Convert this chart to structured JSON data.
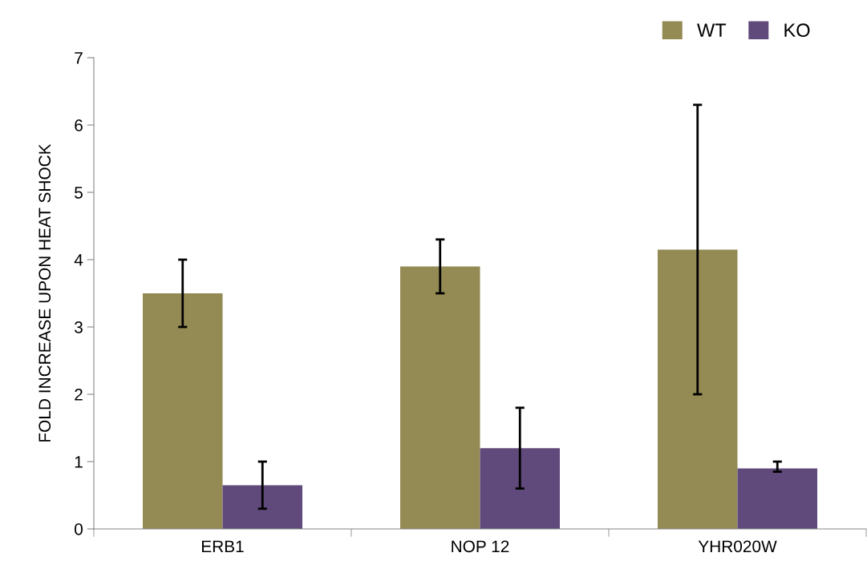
{
  "chart_data": {
    "type": "bar",
    "ylabel": "FOLD INCREASE UPON HEAT SHOCK",
    "categories": [
      "ERB1",
      "NOP 12",
      "YHR020W"
    ],
    "series": [
      {
        "name": "WT",
        "color": "#948a54",
        "values": [
          3.5,
          3.9,
          4.15
        ],
        "errors": [
          [
            3.0,
            4.0
          ],
          [
            3.5,
            4.3
          ],
          [
            2.0,
            6.3
          ]
        ]
      },
      {
        "name": "KO",
        "color": "#604a7b",
        "values": [
          0.65,
          1.2,
          0.9
        ],
        "errors": [
          [
            0.3,
            1.0
          ],
          [
            0.6,
            1.8
          ],
          [
            0.85,
            1.0
          ]
        ]
      }
    ],
    "ylim": [
      0,
      7
    ],
    "yticks": [
      0,
      1,
      2,
      3,
      4,
      5,
      6,
      7
    ],
    "grid": false,
    "legend": "top right"
  }
}
